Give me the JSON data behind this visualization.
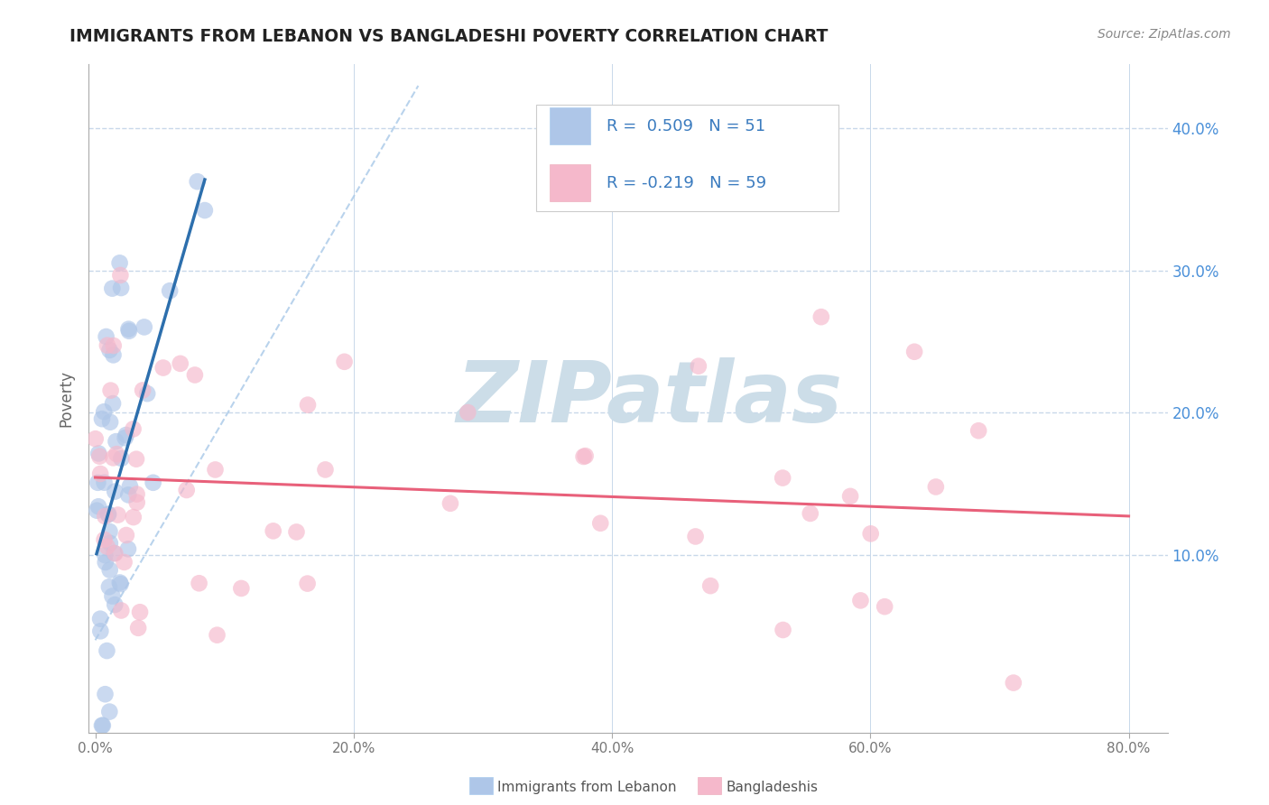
{
  "title": "IMMIGRANTS FROM LEBANON VS BANGLADESHI POVERTY CORRELATION CHART",
  "source": "Source: ZipAtlas.com",
  "xlabel_ticks": [
    "0.0%",
    "20.0%",
    "40.0%",
    "60.0%",
    "80.0%"
  ],
  "xlabel_tick_vals": [
    0.0,
    0.2,
    0.4,
    0.6,
    0.8
  ],
  "ylabel": "Poverty",
  "ylabel_ticks": [
    "10.0%",
    "20.0%",
    "30.0%",
    "40.0%"
  ],
  "ylabel_tick_vals": [
    0.1,
    0.2,
    0.3,
    0.4
  ],
  "xlim": [
    -0.005,
    0.83
  ],
  "ylim": [
    -0.025,
    0.445
  ],
  "legend_labels": [
    "Immigrants from Lebanon",
    "Bangladeshis"
  ],
  "R_lebanon": 0.509,
  "N_lebanon": 51,
  "R_bangladesh": -0.219,
  "N_bangladesh": 59,
  "color_lebanon": "#aec6e8",
  "color_bangladesh": "#f5b8cb",
  "trendline_lebanon": "#2d6fad",
  "trendline_bangladesh": "#e8607a",
  "background_color": "#ffffff",
  "grid_color": "#c8d8ea",
  "title_color": "#222222",
  "watermark_color": "#ccdde8",
  "axis_color": "#aaaaaa",
  "legend_text_color": "#3a7bbf",
  "right_tick_color": "#4a90d9"
}
